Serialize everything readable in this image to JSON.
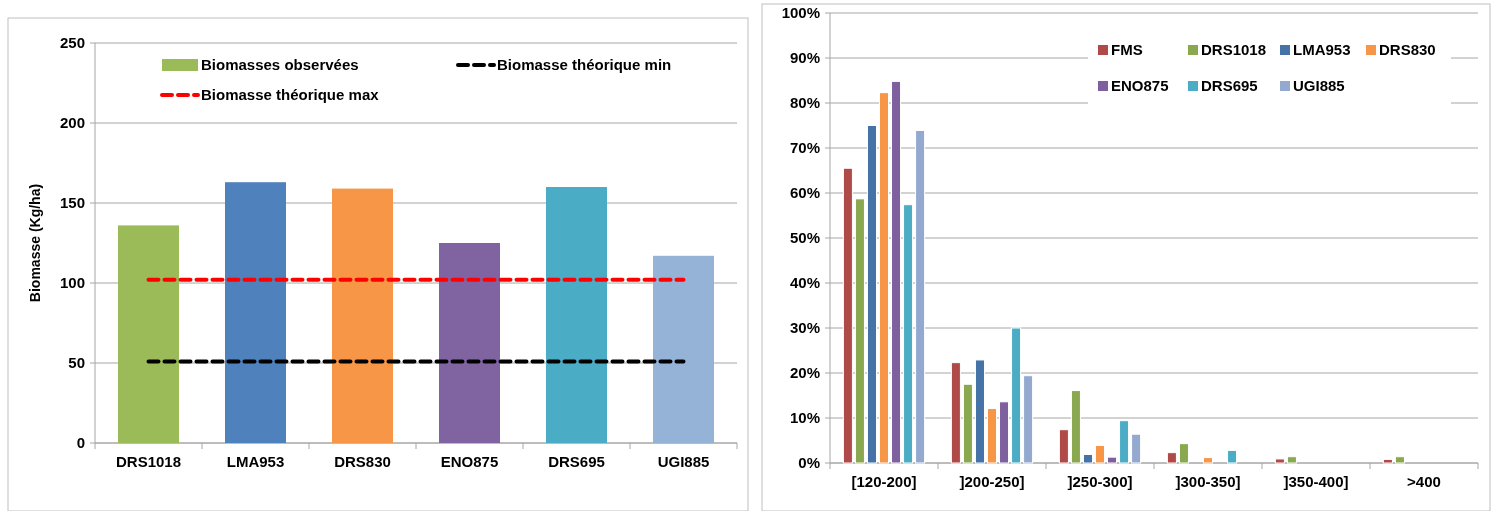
{
  "chart_data": [
    {
      "type": "bar",
      "ylabel": "Biomasse (Kg/ha)",
      "categories": [
        "DRS1018",
        "LMA953",
        "DRS830",
        "ENO875",
        "DRS695",
        "UGI885"
      ],
      "ylim": [
        0,
        250
      ],
      "yticks": [
        0,
        50,
        100,
        150,
        200,
        250
      ],
      "grid": "y",
      "legend": "top",
      "series": [
        {
          "name": "Biomasses observées",
          "color": "#9bbb59",
          "colors": [
            "#9bbb59",
            "#4f81bd",
            "#f79646",
            "#8064a2",
            "#4bacc6",
            "#95b3d7"
          ],
          "values": [
            136,
            163,
            159,
            125,
            160,
            117
          ]
        },
        {
          "name": "Biomasse théorique min",
          "type": "line",
          "color": "#000000",
          "line_style": "dashed",
          "values": [
            51,
            51,
            51,
            51,
            51,
            51
          ]
        },
        {
          "name": "Biomasse théorique max",
          "type": "line",
          "color": "#ff0000",
          "line_style": "dashed",
          "values": [
            102,
            102,
            102,
            102,
            102,
            102
          ]
        }
      ]
    },
    {
      "type": "bar",
      "categories": [
        "[120-200]",
        "]200-250]",
        "]250-300]",
        "]300-350]",
        "]350-400]",
        ">400"
      ],
      "ylim": [
        0,
        100
      ],
      "yticks": [
        {
          "value": 0,
          "label": "0%"
        },
        {
          "value": 10,
          "label": "10%"
        },
        {
          "value": 20,
          "label": "20%"
        },
        {
          "value": 30,
          "label": "30%"
        },
        {
          "value": 40,
          "label": "40%"
        },
        {
          "value": 50,
          "label": "50%"
        },
        {
          "value": 60,
          "label": "60%"
        },
        {
          "value": 70,
          "label": "70%"
        },
        {
          "value": 80,
          "label": "80%"
        },
        {
          "value": 90,
          "label": "90%"
        },
        {
          "value": 100,
          "label": "100%"
        }
      ],
      "grid": "y",
      "legend": "top right",
      "series": [
        {
          "name": "FMS",
          "color": "#b04a48",
          "values": [
            65.5,
            22.3,
            7.4,
            2.3,
            0.9,
            0.8
          ]
        },
        {
          "name": "DRS1018",
          "color": "#8aa84f",
          "values": [
            58.7,
            17.5,
            16.1,
            4.3,
            1.4,
            1.4
          ]
        },
        {
          "name": "LMA953",
          "color": "#4572a7",
          "values": [
            75,
            22.9,
            1.9,
            0,
            0,
            0
          ]
        },
        {
          "name": "DRS830",
          "color": "#f79646",
          "values": [
            82.3,
            12.1,
            3.9,
            1.2,
            0,
            0
          ]
        },
        {
          "name": "ENO875",
          "color": "#7f609e",
          "values": [
            84.8,
            13.6,
            1.3,
            0,
            0,
            0
          ]
        },
        {
          "name": "DRS695",
          "color": "#4bacc6",
          "values": [
            57.4,
            30,
            9.4,
            2.8,
            0,
            0
          ]
        },
        {
          "name": "UGI885",
          "color": "#93a9cf",
          "values": [
            73.9,
            19.4,
            6.4,
            0,
            0,
            0
          ]
        }
      ]
    }
  ]
}
